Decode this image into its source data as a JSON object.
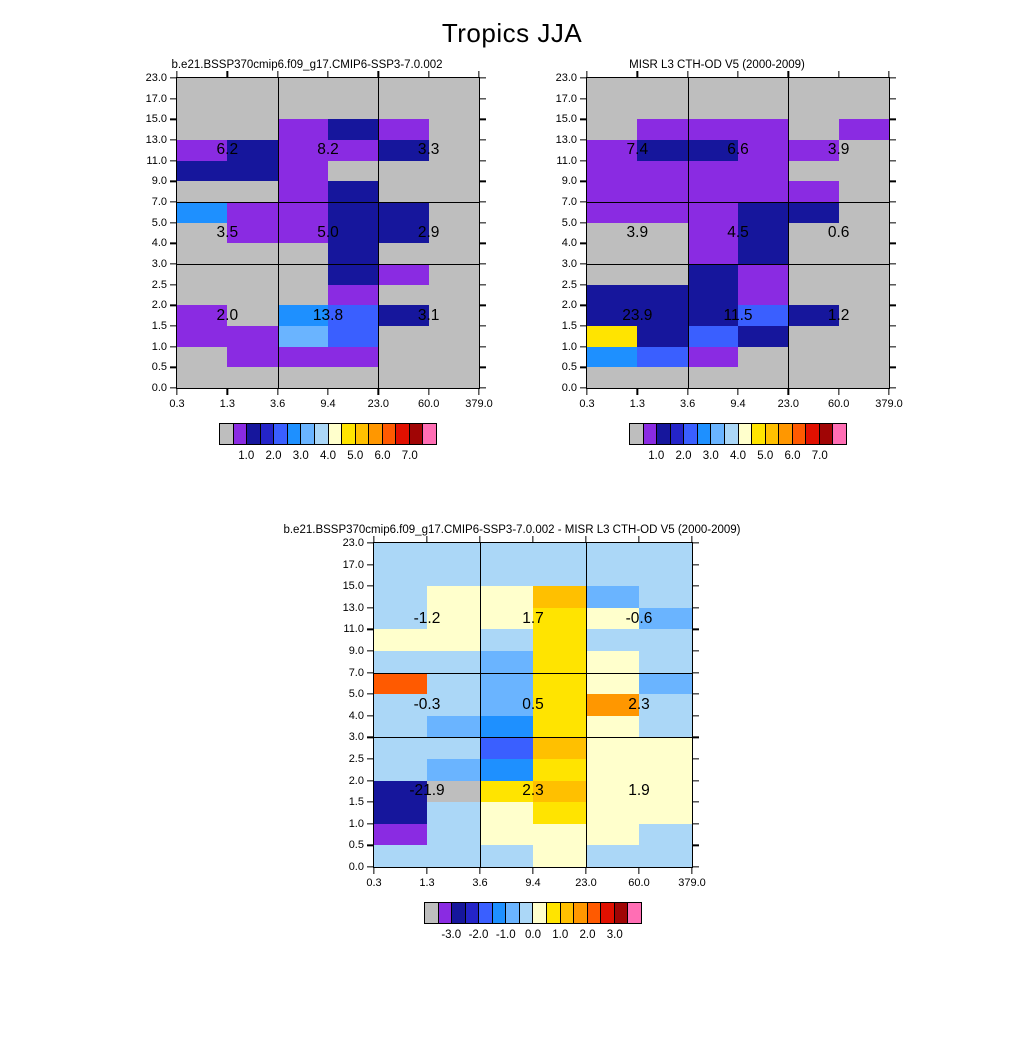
{
  "title": "Tropics JJA",
  "palette": {
    "G": "#bebebe",
    "P": "#8a2be2",
    "N": "#16169c",
    "U": "#2424c8",
    "B": "#3a5fff",
    "D": "#1e90ff",
    "S": "#6ab4ff",
    "L": "#abd7f7",
    "C": "#ffffcc",
    "Y": "#ffe400",
    "O": "#ffc000",
    "Q": "#ff9700",
    "R": "#ff5a00",
    "E": "#e11000",
    "K": "#a00505",
    "M": "#ff6eb4"
  },
  "palette_order": [
    "G",
    "P",
    "N",
    "U",
    "B",
    "D",
    "S",
    "L",
    "C",
    "Y",
    "O",
    "Q",
    "R",
    "E",
    "K",
    "M"
  ],
  "chart_data": [
    {
      "type": "heatmap",
      "title": "b.e21.BSSP370cmip6.f09_g17.CMIP6-SSP3-7.0.002",
      "xticks": [
        "0.3",
        "1.3",
        "3.6",
        "9.4",
        "23.0",
        "60.0",
        "379.0"
      ],
      "yticks": [
        "23.0",
        "17.0",
        "15.0",
        "13.0",
        "11.0",
        "9.0",
        "7.0",
        "5.0",
        "4.0",
        "3.0",
        "2.5",
        "2.0",
        "1.5",
        "1.0",
        "0.5",
        "0.0"
      ],
      "cells": [
        "GGGGGG",
        "GGGGGG",
        "GGPNPG",
        "PNPPNG",
        "NNPGGG",
        "GGPNGG",
        "DPPNNG",
        "GPPNNG",
        "GGGNGG",
        "GGGNPG",
        "GGGPGG",
        "PGDBNG",
        "PPSBGG",
        "GPPPGG",
        "GGGGGG"
      ],
      "overlay_values": [
        [
          "6.2",
          "8.2",
          "3.3"
        ],
        [
          "3.5",
          "5.0",
          "2.9"
        ],
        [
          "2.0",
          "13.8",
          "3.1"
        ]
      ],
      "colorbar_labels": [
        "1.0",
        "2.0",
        "3.0",
        "4.0",
        "5.0",
        "6.0",
        "7.0"
      ]
    },
    {
      "type": "heatmap",
      "title": "MISR L3 CTH-OD V5 (2000-2009)",
      "xticks": [
        "0.3",
        "1.3",
        "3.6",
        "9.4",
        "23.0",
        "60.0",
        "379.0"
      ],
      "yticks": [
        "23.0",
        "17.0",
        "15.0",
        "13.0",
        "11.0",
        "9.0",
        "7.0",
        "5.0",
        "4.0",
        "3.0",
        "2.5",
        "2.0",
        "1.5",
        "1.0",
        "0.5",
        "0.0"
      ],
      "cells": [
        "GGGGGG",
        "GGGGGG",
        "GPPPGP",
        "PNNPPG",
        "PPPPGG",
        "PPPPPG",
        "PPPNNG",
        "GGPNGG",
        "GGPNGG",
        "GGNPGG",
        "NNNPGG",
        "NNNBNG",
        "YNBNGG",
        "DBPGGG",
        "GGGGGG"
      ],
      "overlay_values": [
        [
          "7.4",
          "6.6",
          "3.9"
        ],
        [
          "3.9",
          "4.5",
          "0.6"
        ],
        [
          "23.9",
          "11.5",
          "1.2"
        ]
      ],
      "colorbar_labels": [
        "1.0",
        "2.0",
        "3.0",
        "4.0",
        "5.0",
        "6.0",
        "7.0"
      ]
    },
    {
      "type": "heatmap",
      "title": "b.e21.BSSP370cmip6.f09_g17.CMIP6-SSP3-7.0.002 - MISR L3 CTH-OD V5 (2000-2009)",
      "xticks": [
        "0.3",
        "1.3",
        "3.6",
        "9.4",
        "23.0",
        "60.0",
        "379.0"
      ],
      "yticks": [
        "23.0",
        "17.0",
        "15.0",
        "13.0",
        "11.0",
        "9.0",
        "7.0",
        "5.0",
        "4.0",
        "3.0",
        "2.5",
        "2.0",
        "1.5",
        "1.0",
        "0.5",
        "0.0"
      ],
      "cells": [
        "LLLLLL",
        "LLLLLL",
        "LCCOSL",
        "LCCYCS",
        "CCLYLL",
        "LLSYCL",
        "RLSYCS",
        "LLSYQL",
        "LSDYCL",
        "LLBOCC",
        "LSDYCC",
        "NGYOCC",
        "NLCYCC",
        "PLCCCL",
        "LLLCLL"
      ],
      "overlay_values": [
        [
          "-1.2",
          "1.7",
          "-0.6"
        ],
        [
          "-0.3",
          "0.5",
          "2.3"
        ],
        [
          "-21.9",
          "2.3",
          "1.9"
        ]
      ],
      "colorbar_labels": [
        "-3.0",
        "-2.0",
        "-1.0",
        "0.0",
        "1.0",
        "2.0",
        "3.0"
      ]
    }
  ]
}
